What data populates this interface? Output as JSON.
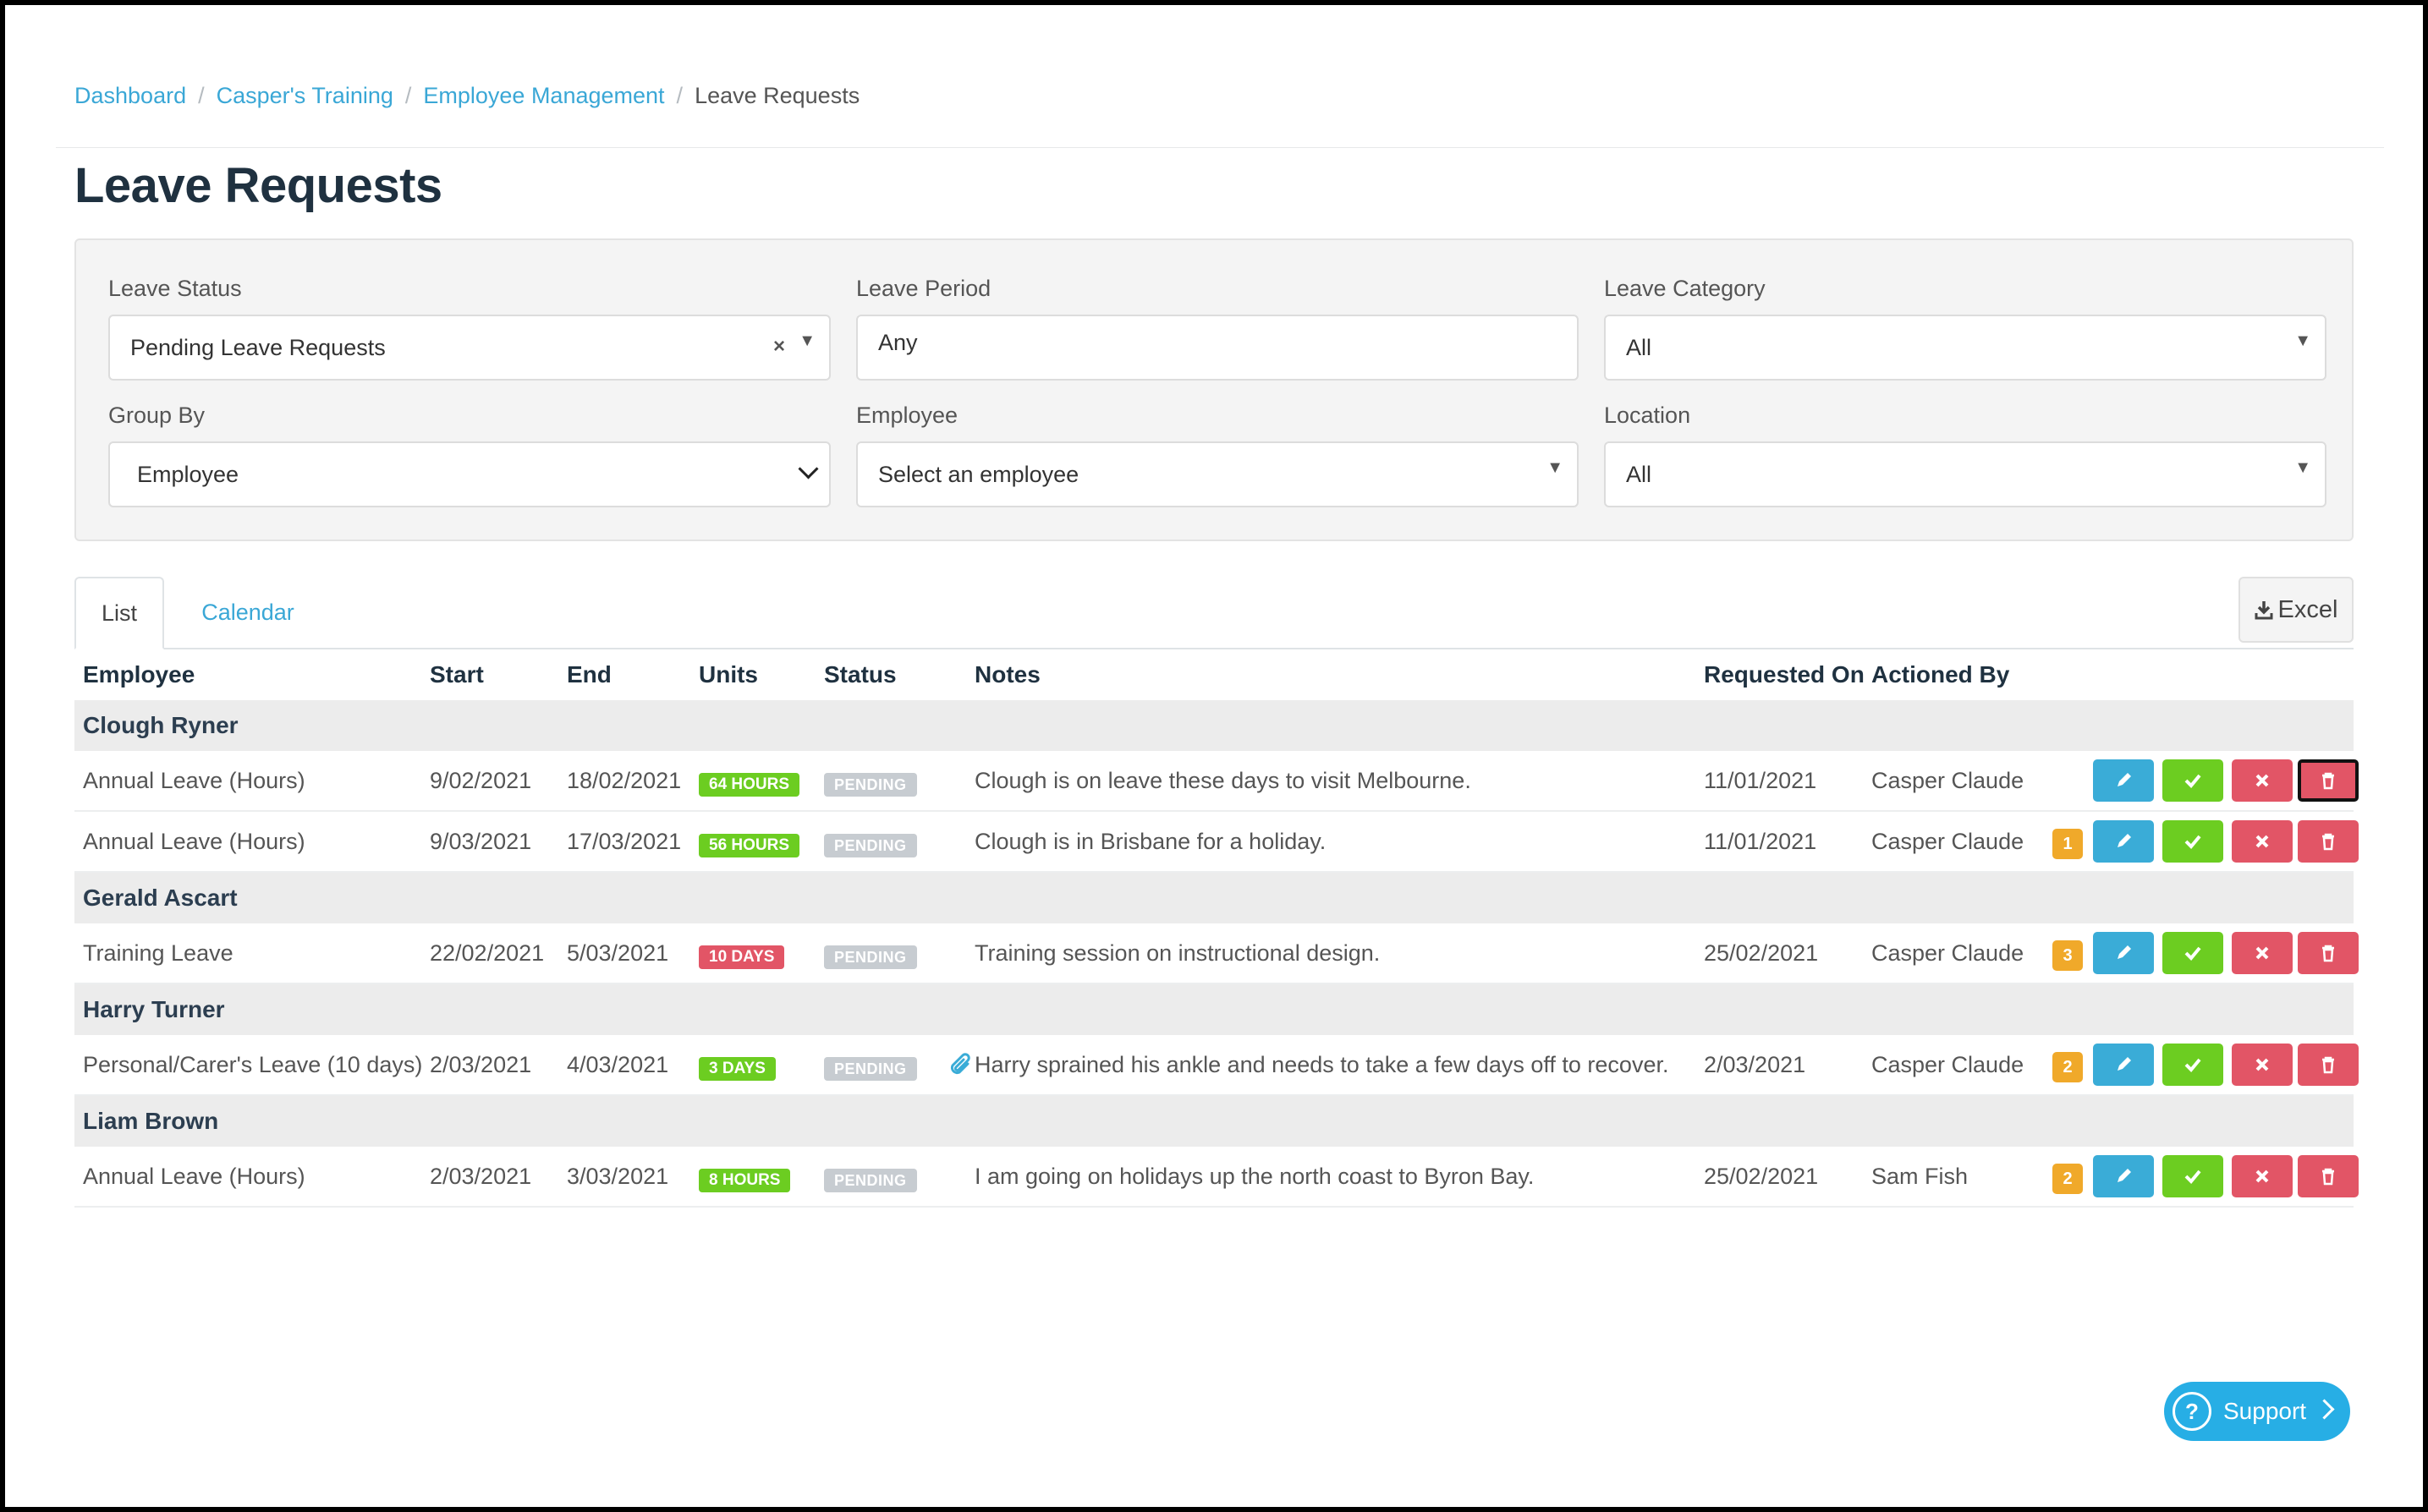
{
  "breadcrumb": {
    "items": [
      "Dashboard",
      "Casper's Training",
      "Employee Management"
    ],
    "current": "Leave Requests",
    "separator": "/"
  },
  "page_title": "Leave Requests",
  "filters": {
    "leave_status": {
      "label": "Leave Status",
      "value": "Pending Leave Requests"
    },
    "leave_period": {
      "label": "Leave Period",
      "value": "Any"
    },
    "leave_category": {
      "label": "Leave Category",
      "value": "All"
    },
    "group_by": {
      "label": "Group By",
      "value": "Employee"
    },
    "employee": {
      "label": "Employee",
      "placeholder": "Select an employee"
    },
    "location": {
      "label": "Location",
      "value": "All"
    }
  },
  "tabs": [
    {
      "label": "List",
      "active": true
    },
    {
      "label": "Calendar",
      "active": false
    }
  ],
  "export": {
    "label": "Excel",
    "icon": "download-icon"
  },
  "table": {
    "headers": [
      "Employee",
      "Start",
      "End",
      "Units",
      "Status",
      "Notes",
      "Requested On",
      "Actioned By"
    ],
    "groups": [
      {
        "name": "Clough Ryner",
        "rows": [
          {
            "type": "Annual Leave (Hours)",
            "start": "9/02/2021",
            "end": "18/02/2021",
            "units": "64 HOURS",
            "units_color": "#6ccd21",
            "status": "PENDING",
            "notes": "Clough is on leave these days to visit Melbourne.",
            "requested_on": "11/01/2021",
            "actioned_by": "Casper Claude",
            "count": "",
            "attachment": false
          },
          {
            "type": "Annual Leave (Hours)",
            "start": "9/03/2021",
            "end": "17/03/2021",
            "units": "56 HOURS",
            "units_color": "#6ccd21",
            "status": "PENDING",
            "notes": "Clough is in Brisbane for a holiday.",
            "requested_on": "11/01/2021",
            "actioned_by": "Casper Claude",
            "count": "1",
            "attachment": false
          }
        ]
      },
      {
        "name": "Gerald Ascart",
        "rows": [
          {
            "type": "Training Leave",
            "start": "22/02/2021",
            "end": "5/03/2021",
            "units": "10 DAYS",
            "units_color": "#e25566",
            "status": "PENDING",
            "notes": "Training session on instructional design.",
            "requested_on": "25/02/2021",
            "actioned_by": "Casper Claude",
            "count": "3",
            "attachment": false
          }
        ]
      },
      {
        "name": "Harry Turner",
        "rows": [
          {
            "type": "Personal/Carer's Leave (10 days)",
            "start": "2/03/2021",
            "end": "4/03/2021",
            "units": "3 DAYS",
            "units_color": "#6ccd21",
            "status": "PENDING",
            "notes": "Harry sprained his ankle and needs to take a few days off to recover.",
            "requested_on": "2/03/2021",
            "actioned_by": "Casper Claude",
            "count": "2",
            "attachment": true
          }
        ]
      },
      {
        "name": "Liam Brown",
        "rows": [
          {
            "type": "Annual Leave (Hours)",
            "start": "2/03/2021",
            "end": "3/03/2021",
            "units": "8 HOURS",
            "units_color": "#6ccd21",
            "status": "PENDING",
            "notes": "I am going on holidays up the north coast to Byron Bay.",
            "requested_on": "25/02/2021",
            "actioned_by": "Sam Fish",
            "count": "2",
            "attachment": false
          }
        ]
      }
    ]
  },
  "support": {
    "label": "Support",
    "icon": "question-icon"
  },
  "colors": {
    "link": "#3aa7d6",
    "edit": "#3aacd7",
    "approve": "#6ccd21",
    "decline": "#e25566",
    "count_badge": "#f0a92a",
    "support": "#27aee5"
  }
}
